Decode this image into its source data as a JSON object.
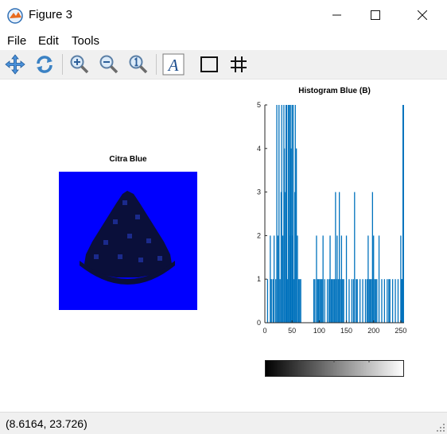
{
  "window": {
    "title": "Figure 3",
    "minimize_icon": "minimize-icon",
    "maximize_icon": "maximize-icon",
    "close_icon": "close-icon"
  },
  "menu": {
    "items": [
      "File",
      "Edit",
      "Tools"
    ]
  },
  "toolbar": {
    "tools": [
      "pan-icon",
      "rotate-icon",
      "zoom-in-icon",
      "zoom-out-icon",
      "zoom-reset-icon",
      "text-icon",
      "box-icon",
      "grid-icon"
    ]
  },
  "image_axes": {
    "title": "Citra Blue",
    "background_color": "#0000ff",
    "object_color": "#0a0f3a"
  },
  "chart_data": {
    "type": "bar",
    "title": "Histogram Blue (B)",
    "xlabel": "",
    "ylabel": "",
    "xlim": [
      0,
      256
    ],
    "ylim": [
      0,
      5
    ],
    "xticks": [
      0,
      50,
      100,
      150,
      200,
      250
    ],
    "yticks": [
      0,
      1,
      2,
      3,
      4,
      5
    ],
    "bar_color": "#0072bd",
    "x": [
      5,
      10,
      12,
      15,
      17,
      20,
      22,
      24,
      26,
      28,
      30,
      31,
      33,
      35,
      36,
      38,
      39,
      40,
      42,
      43,
      45,
      46,
      47,
      48,
      50,
      51,
      52,
      53,
      55,
      56,
      58,
      60,
      62,
      64,
      66,
      90,
      92,
      95,
      97,
      99,
      101,
      103,
      105,
      107,
      110,
      115,
      118,
      120,
      122,
      124,
      126,
      128,
      130,
      131,
      133,
      135,
      137,
      139,
      141,
      143,
      145,
      150,
      155,
      160,
      163,
      165,
      168,
      170,
      175,
      180,
      185,
      188,
      190,
      192,
      194,
      196,
      198,
      200,
      202,
      204,
      206,
      210,
      215,
      220,
      225,
      228,
      230,
      235,
      240,
      245,
      250,
      251,
      252,
      253,
      254,
      255
    ],
    "values": [
      1,
      2,
      1,
      1,
      2,
      1,
      5,
      2,
      5,
      1,
      3,
      5,
      2,
      5,
      4,
      3,
      5,
      5,
      1,
      5,
      5,
      2,
      5,
      4,
      5,
      2,
      5,
      1,
      3,
      5,
      4,
      2,
      1,
      1,
      1,
      1,
      1,
      2,
      1,
      1,
      1,
      1,
      1,
      2,
      1,
      1,
      1,
      2,
      1,
      1,
      1,
      1,
      3,
      1,
      2,
      1,
      3,
      1,
      2,
      1,
      1,
      2,
      1,
      1,
      1,
      3,
      1,
      1,
      1,
      1,
      1,
      1,
      2,
      1,
      1,
      1,
      3,
      2,
      1,
      1,
      1,
      2,
      1,
      1,
      1,
      1,
      1,
      1,
      1,
      1,
      2,
      1,
      1,
      1,
      5,
      5
    ]
  },
  "colorbar": {
    "gradient": [
      "#000000",
      "#ffffff"
    ]
  },
  "status": {
    "coords": "(8.6164, 23.726)"
  }
}
